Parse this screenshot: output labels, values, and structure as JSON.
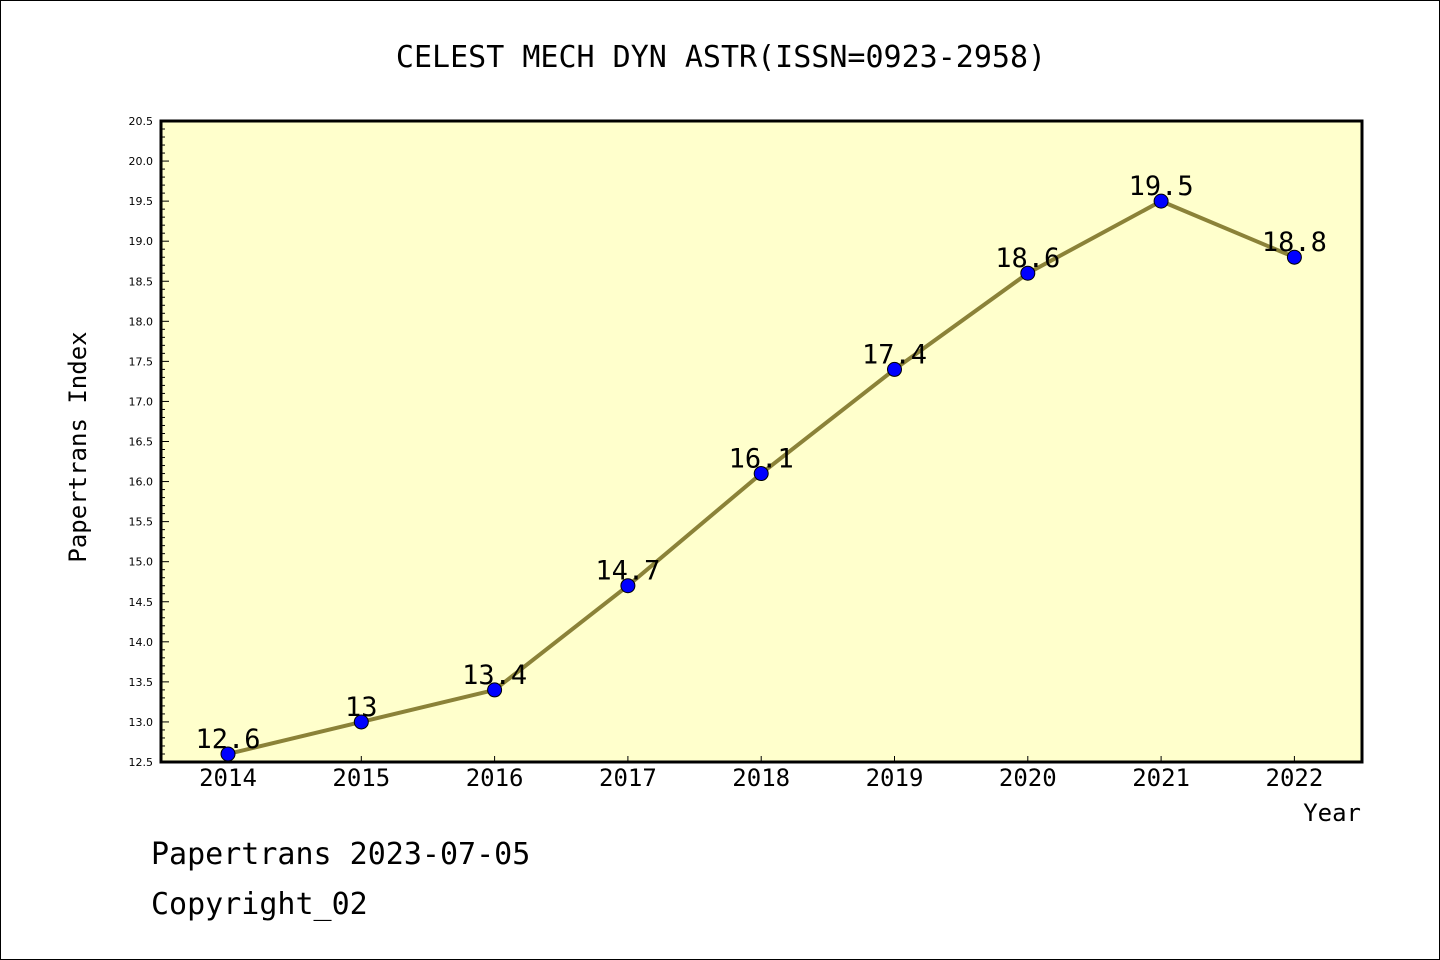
{
  "chart_data": {
    "type": "line",
    "title": "CELEST MECH DYN ASTR(ISSN=0923-2958)",
    "xlabel": "Year",
    "ylabel": "Papertrans Index",
    "categories": [
      "2014",
      "2015",
      "2016",
      "2017",
      "2018",
      "2019",
      "2020",
      "2021",
      "2022"
    ],
    "series": [
      {
        "values": [
          12.6,
          13.0,
          13.4,
          14.7,
          16.1,
          17.4,
          18.6,
          19.5,
          18.8
        ],
        "labels": [
          "12.6",
          "13",
          "13.4",
          "14.7",
          "16.1",
          "17.4",
          "18.6",
          "19.5",
          "18.8"
        ]
      }
    ],
    "ylim": [
      12.5,
      20.5
    ],
    "yticks": [
      "12.5",
      "13.0",
      "13.5",
      "14.0",
      "14.5",
      "15.0",
      "15.5",
      "16.0",
      "16.5",
      "17.0",
      "17.5",
      "18.0",
      "18.5",
      "19.0",
      "19.5",
      "20.0",
      "20.5"
    ],
    "grid": false,
    "colors": {
      "plot_background": "#ffffcc",
      "line": "#8b8238",
      "marker": "#0000ff"
    }
  },
  "footer": {
    "line1": "Papertrans 2023-07-05",
    "line2": "Copyright_02"
  }
}
